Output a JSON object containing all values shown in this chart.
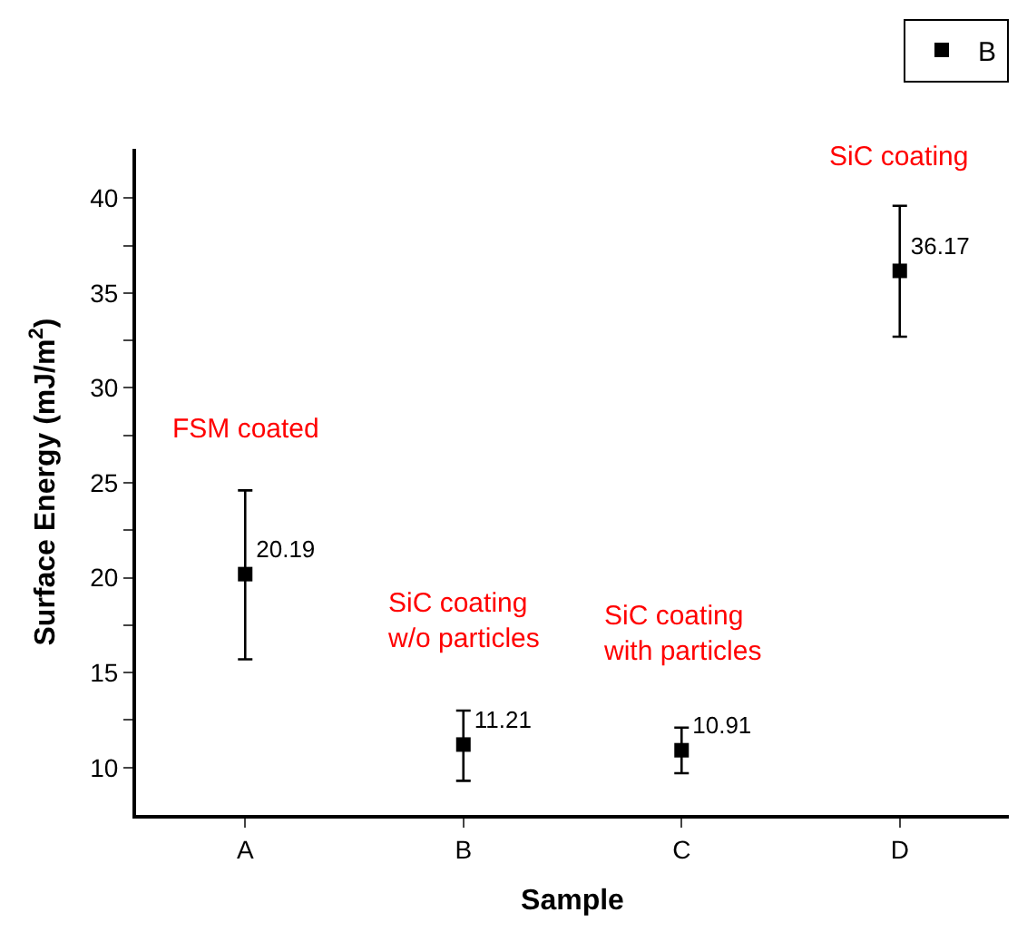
{
  "chart_data": {
    "type": "scatter",
    "xlabel": "Sample",
    "ylabel": "Surface Energy (mJ/m$^{2}$)",
    "categories": [
      "A",
      "B",
      "C",
      "D"
    ],
    "series": [
      {
        "name": "B",
        "color": "#000000",
        "values": [
          20.19,
          11.21,
          10.91,
          36.17
        ],
        "errors": [
          [
            15.7,
            24.6
          ],
          [
            9.3,
            13.0
          ],
          [
            9.7,
            12.1
          ],
          [
            32.7,
            39.6
          ]
        ]
      }
    ],
    "data_labels": true,
    "marker": "square",
    "ylim": [
      7.5,
      42.6
    ],
    "yticks": [
      10,
      {
        "value": 12.5,
        "label": null
      },
      15,
      {
        "value": 17.5,
        "label": null
      },
      20,
      {
        "value": 22.5,
        "label": null
      },
      25,
      {
        "value": 27.5,
        "label": null
      },
      30,
      {
        "value": 32.5,
        "label": null
      },
      35,
      {
        "value": 37.5,
        "label": null
      },
      40
    ],
    "annotations": [
      "FSM coated",
      "SiC coating\nw/o particles",
      "SiC coating\nwith particles",
      "SiC coating"
    ],
    "legend": "top right"
  }
}
